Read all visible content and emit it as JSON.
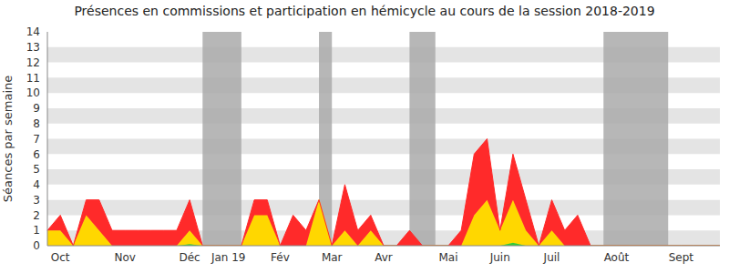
{
  "chart_data": {
    "type": "area",
    "title": "Présences en commissions et participation en hémicycle au cours de la session 2018-2019",
    "y_label": "Séances par semaine",
    "stacked": true,
    "grid": true,
    "categories": [
      null,
      "Oct",
      null,
      null,
      null,
      null,
      "Nov",
      null,
      null,
      null,
      null,
      "Déc",
      null,
      null,
      "Jan 19",
      null,
      null,
      null,
      "Fév",
      null,
      null,
      null,
      "Mar",
      null,
      null,
      null,
      "Avr",
      null,
      null,
      null,
      null,
      "Mai",
      null,
      null,
      null,
      "Juin",
      null,
      null,
      null,
      "Juil",
      null,
      null,
      null,
      null,
      "Août",
      null,
      null,
      null,
      null,
      "Sept",
      null,
      null,
      null
    ],
    "series": [
      {
        "color": "#33cc33",
        "values": [
          0,
          0,
          0,
          0,
          0,
          0,
          0,
          0,
          0,
          0,
          0,
          0.1,
          0,
          0,
          0,
          0,
          0,
          0,
          0,
          0,
          0,
          0,
          0,
          0,
          0,
          0,
          0,
          0,
          0,
          0,
          0,
          0,
          0,
          0,
          0,
          0,
          0.2,
          0,
          0,
          0,
          0,
          0,
          0,
          0,
          0,
          0,
          0,
          0,
          0,
          0,
          0,
          0,
          0
        ]
      },
      {
        "color": "#ffd700",
        "values": [
          1,
          1,
          0,
          2,
          1,
          0,
          0,
          0,
          0,
          0,
          0,
          0.9,
          0,
          0,
          0,
          0,
          2,
          2,
          0,
          0,
          0,
          3,
          0,
          1,
          0,
          1,
          0,
          0,
          0,
          0,
          0,
          0,
          0,
          2,
          3,
          1,
          2.8,
          1,
          0,
          1,
          0,
          0,
          0,
          0,
          0,
          0,
          0,
          0,
          0,
          0,
          0,
          0,
          0
        ]
      },
      {
        "color": "#ff2a2a",
        "values": [
          0,
          1,
          0,
          1,
          2,
          1,
          1,
          1,
          1,
          1,
          1,
          2,
          0,
          0,
          0,
          0,
          1,
          1,
          0,
          2,
          1,
          0,
          0,
          3,
          1,
          1,
          0,
          0,
          1,
          0,
          0,
          0,
          1,
          4,
          4,
          0,
          3,
          2,
          0,
          2,
          1,
          2,
          0,
          0,
          0,
          0,
          0,
          0,
          0,
          0,
          0,
          0,
          0
        ]
      }
    ],
    "periods": [
      {
        "from": 12,
        "to": 15
      },
      {
        "from": 21,
        "to": 22
      },
      {
        "from": 28,
        "to": 30
      },
      {
        "from": 43,
        "to": 48
      }
    ],
    "ylim": [
      0,
      14
    ],
    "yticks": [
      0,
      1,
      2,
      3,
      4,
      5,
      6,
      7,
      8,
      9,
      10,
      11,
      12,
      13,
      14
    ]
  }
}
